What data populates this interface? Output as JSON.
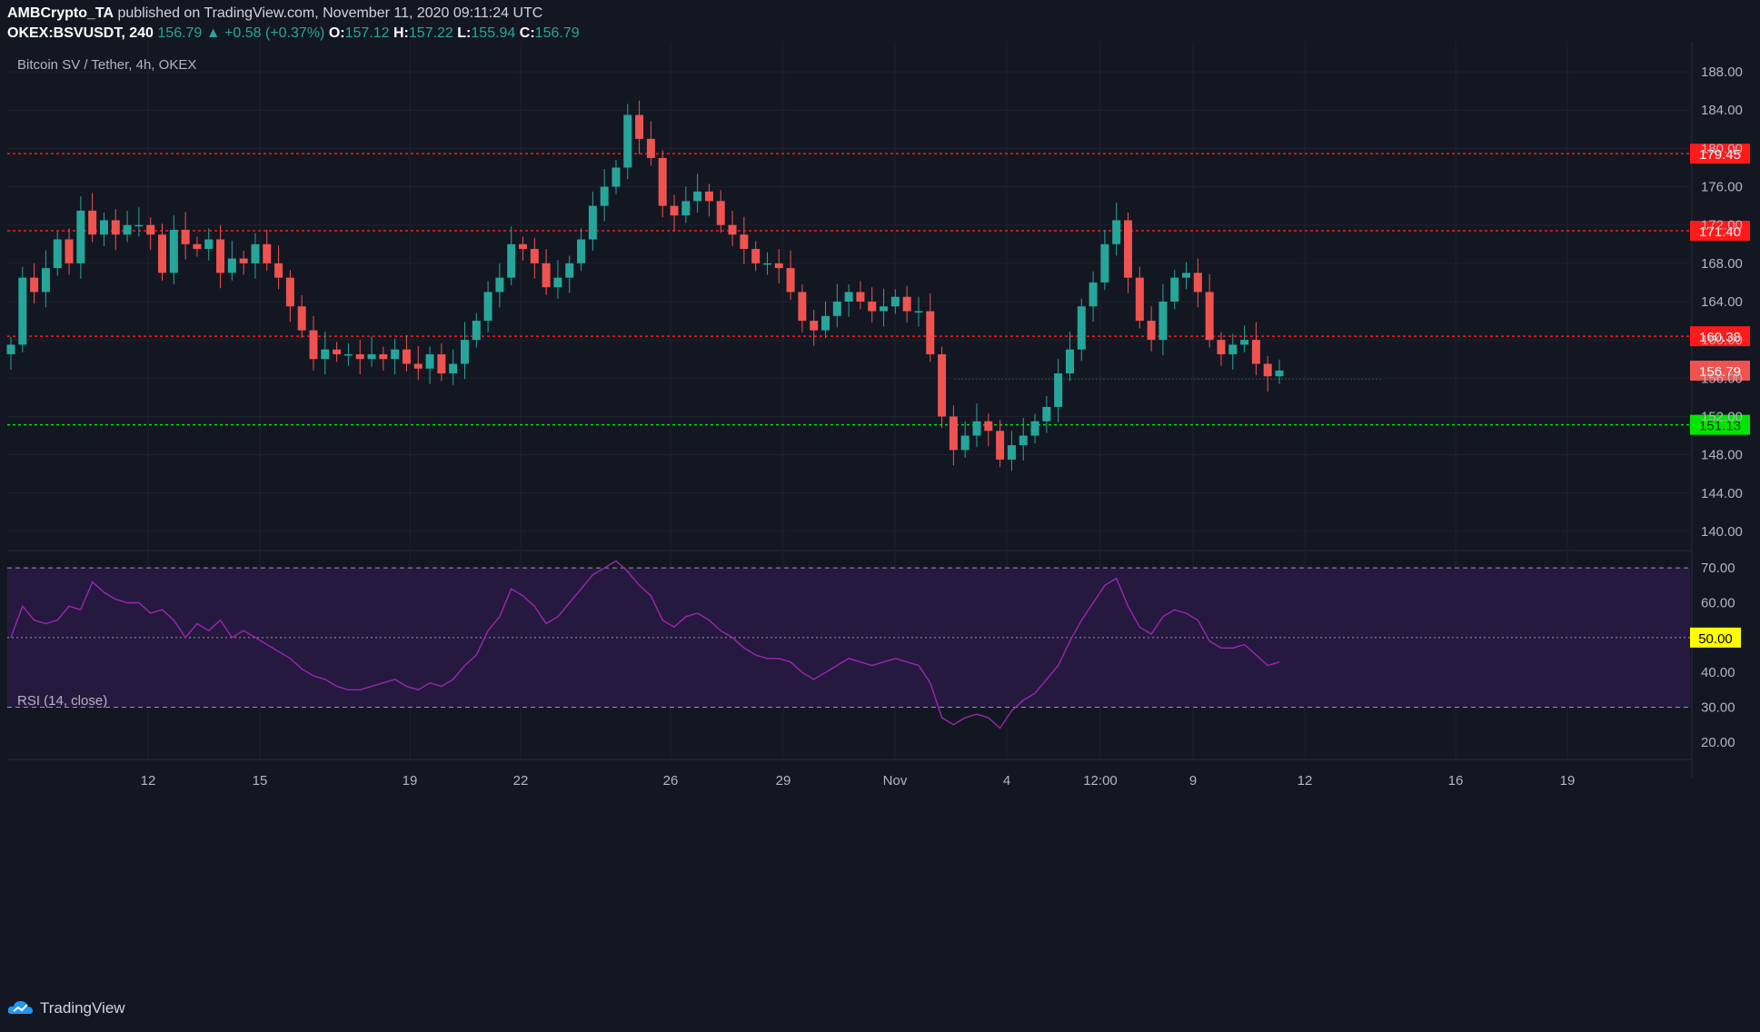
{
  "header": {
    "publisher": "AMBCrypto_TA",
    "published_text": "published on TradingView.com, November 11, 2020 09:11:24 UTC",
    "symbol": "OKEX:BSVUSDT, 240",
    "last": "156.79",
    "change_arrow": "▲",
    "change": "+0.58 (+0.37%)",
    "o_label": "O:",
    "o_val": "157.12",
    "h_label": "H:",
    "h_val": "157.22",
    "l_label": "L:",
    "l_val": "155.94",
    "c_label": "C:",
    "c_val": "156.79"
  },
  "footer": {
    "brand": "TradingView"
  },
  "colors": {
    "bg": "#131722",
    "up": "#26a69a",
    "down": "#ef5350",
    "resistance": "#ff1a1a",
    "support": "#00e600",
    "rsi": "#9c27b0",
    "rsi_band": "#2a1a45"
  },
  "chart_data": [
    {
      "type": "candlestick",
      "title": "Bitcoin SV / Tether, 4h, OKEX",
      "ylim": [
        138,
        190
      ],
      "y_ticks": [
        "140.00",
        "144.00",
        "148.00",
        "152.00",
        "156.00",
        "160.00",
        "164.00",
        "168.00",
        "172.00",
        "176.00",
        "180.00",
        "184.00",
        "188.00"
      ],
      "x_ticks": [
        "12",
        "15",
        "19",
        "22",
        "26",
        "29",
        "Nov",
        "4",
        "12:00",
        "9",
        "12",
        "16",
        "19"
      ],
      "price_levels": [
        {
          "value": 179.45,
          "label": "179.45",
          "style": "resistance"
        },
        {
          "value": 171.4,
          "label": "171.40",
          "style": "resistance"
        },
        {
          "value": 160.38,
          "label": "160.38",
          "style": "resistance"
        },
        {
          "value": 151.13,
          "label": "151.13",
          "style": "support"
        }
      ],
      "last_price": {
        "value": 156.79,
        "label": "156.79"
      },
      "close_series": [
        159.5,
        166.5,
        165.0,
        167.5,
        170.5,
        168.0,
        173.5,
        171.0,
        172.5,
        171.0,
        172.0,
        172.0,
        171.0,
        167.0,
        171.5,
        170.0,
        169.5,
        170.5,
        167.0,
        168.5,
        168.0,
        170.0,
        168.0,
        166.5,
        163.5,
        161.0,
        158.0,
        159.0,
        158.5,
        158.5,
        158.0,
        158.5,
        158.0,
        159.0,
        157.5,
        157.0,
        158.5,
        156.5,
        157.5,
        160.0,
        162.0,
        165.0,
        166.5,
        170.0,
        169.5,
        168.0,
        165.5,
        166.5,
        168.0,
        170.5,
        174.0,
        176.0,
        178.0,
        183.5,
        181.0,
        179.0,
        174.0,
        173.0,
        174.5,
        175.5,
        174.5,
        172.0,
        171.0,
        169.5,
        168.0,
        168.0,
        167.5,
        165.0,
        162.0,
        161.0,
        162.5,
        164.0,
        165.0,
        164.0,
        163.0,
        163.5,
        164.5,
        163.0,
        163.0,
        158.5,
        152.0,
        148.5,
        150.0,
        151.5,
        150.5,
        147.5,
        149.0,
        150.0,
        151.5,
        153.0,
        156.5,
        159.0,
        163.5,
        166.0,
        170.0,
        172.5,
        166.5,
        162.0,
        160.0,
        164.0,
        166.5,
        167.0,
        165.0,
        160.0,
        158.5,
        159.5,
        160.0,
        157.5,
        156.2,
        156.8
      ]
    },
    {
      "type": "line",
      "title": "RSI (14, close)",
      "ylim": [
        15,
        75
      ],
      "y_ticks": [
        "20.00",
        "30.00",
        "40.00",
        "60.00",
        "70.00"
      ],
      "band": [
        30,
        70
      ],
      "midline": {
        "value": 50,
        "label": "50.00"
      },
      "values": [
        50,
        59,
        55,
        54,
        55,
        59,
        58,
        66,
        63,
        61,
        60,
        60,
        57,
        58,
        55,
        50,
        54,
        52,
        55,
        50,
        52,
        50,
        48,
        46,
        44,
        41,
        39,
        38,
        36,
        35,
        35,
        36,
        37,
        38,
        36,
        35,
        37,
        36,
        38,
        42,
        45,
        52,
        56,
        64,
        62,
        59,
        54,
        56,
        60,
        64,
        68,
        70,
        72,
        69,
        65,
        62,
        55,
        53,
        56,
        57,
        55,
        52,
        50,
        47,
        45,
        44,
        44,
        43,
        40,
        38,
        40,
        42,
        44,
        43,
        42,
        43,
        44,
        43,
        42,
        37,
        27,
        25,
        27,
        28,
        27,
        24,
        29,
        32,
        34,
        38,
        42,
        49,
        55,
        60,
        65,
        67,
        59,
        53,
        51,
        56,
        58,
        57,
        55,
        49,
        47,
        47,
        48,
        45,
        42,
        43
      ]
    }
  ]
}
